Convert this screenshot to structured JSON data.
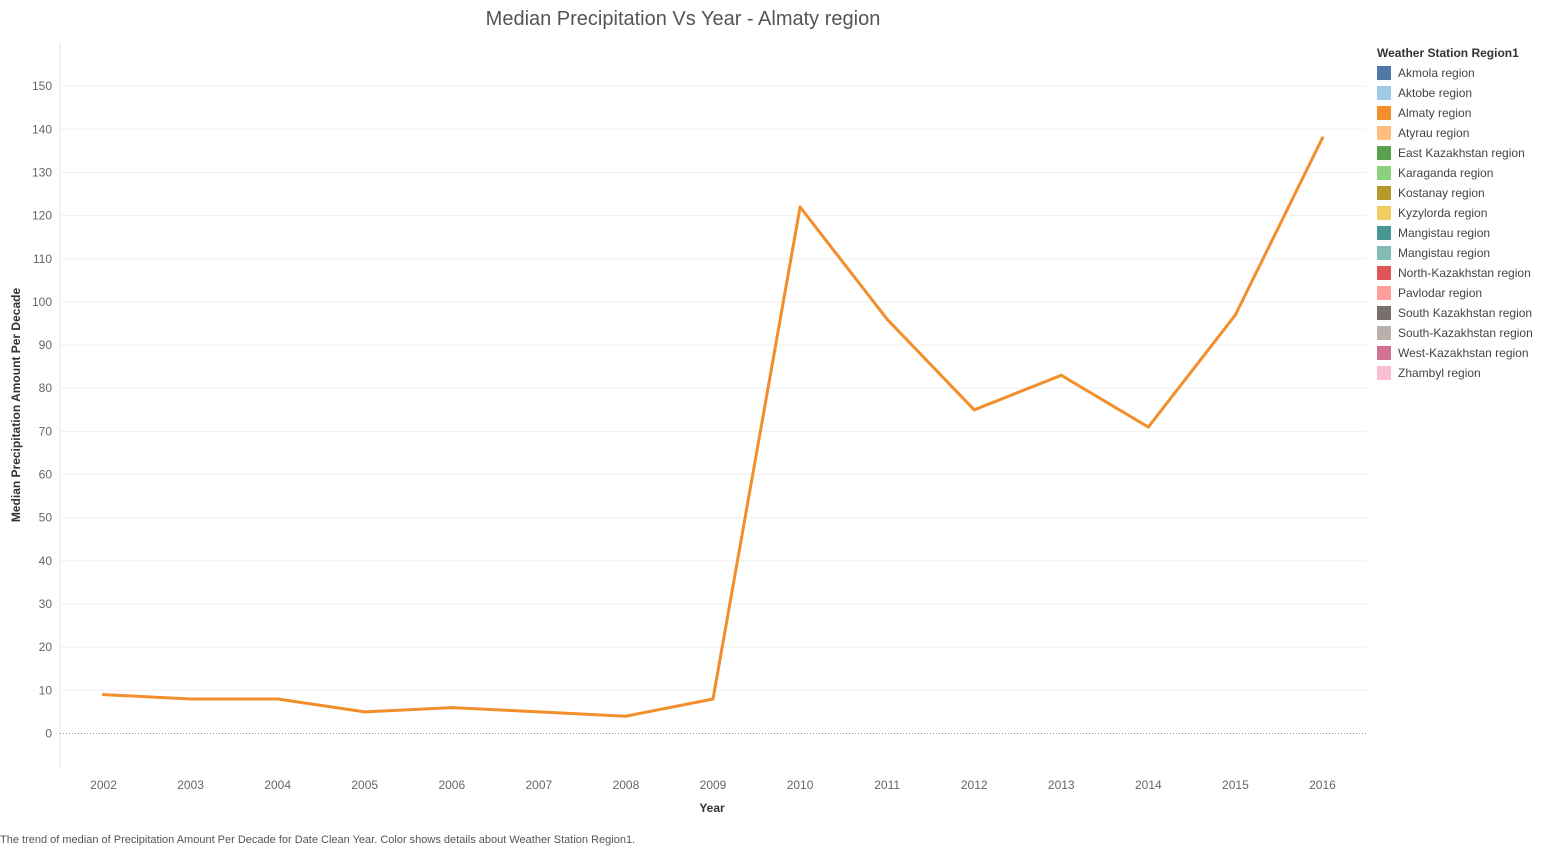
{
  "chart_data": {
    "type": "line",
    "title": "Median Precipitation Vs Year  - Almaty region",
    "xlabel": "Year",
    "ylabel": "Median Precipitation Amount Per Decade",
    "x": [
      "2002",
      "2003",
      "2004",
      "2005",
      "2006",
      "2007",
      "2008",
      "2009",
      "2010",
      "2011",
      "2012",
      "2013",
      "2014",
      "2015",
      "2016"
    ],
    "series": [
      {
        "name": "Almaty region",
        "color": "#F28E2B",
        "values": [
          9,
          8,
          8,
          5,
          6,
          5,
          4,
          8,
          122,
          96,
          75,
          83,
          71,
          97,
          138
        ]
      }
    ],
    "yticks": [
      "0",
      "10",
      "20",
      "30",
      "40",
      "50",
      "60",
      "70",
      "80",
      "90",
      "100",
      "110",
      "120",
      "130",
      "140",
      "150"
    ],
    "ylim": [
      -8,
      160
    ],
    "grid": true,
    "zero_line": "dotted",
    "legend_position": "right",
    "legend": {
      "title": "Weather Station Region1",
      "items": [
        {
          "label": "Akmola region",
          "color": "#4E79A7"
        },
        {
          "label": "Aktobe region",
          "color": "#A0CBE8"
        },
        {
          "label": "Almaty region",
          "color": "#F28E2B"
        },
        {
          "label": "Atyrau region",
          "color": "#FFBE7D"
        },
        {
          "label": "East Kazakhstan region",
          "color": "#59A14F"
        },
        {
          "label": "Karaganda region",
          "color": "#8CD17D"
        },
        {
          "label": "Kostanay region",
          "color": "#B6992D"
        },
        {
          "label": "Kyzylorda region",
          "color": "#F1CE63"
        },
        {
          "label": "Mangistau  region",
          "color": "#499894"
        },
        {
          "label": "Mangistau region",
          "color": "#86BCB6"
        },
        {
          "label": "North-Kazakhstan region",
          "color": "#E15759"
        },
        {
          "label": "Pavlodar region",
          "color": "#FF9D9A"
        },
        {
          "label": "South Kazakhstan region",
          "color": "#79706E"
        },
        {
          "label": "South-Kazakhstan region",
          "color": "#BAB0AC"
        },
        {
          "label": "West-Kazakhstan region",
          "color": "#D37295"
        },
        {
          "label": "Zhambyl region",
          "color": "#FABFD2"
        }
      ]
    },
    "caption": "The trend of median of Precipitation Amount Per Decade for Date Clean Year.  Color shows details about Weather Station Region1."
  }
}
